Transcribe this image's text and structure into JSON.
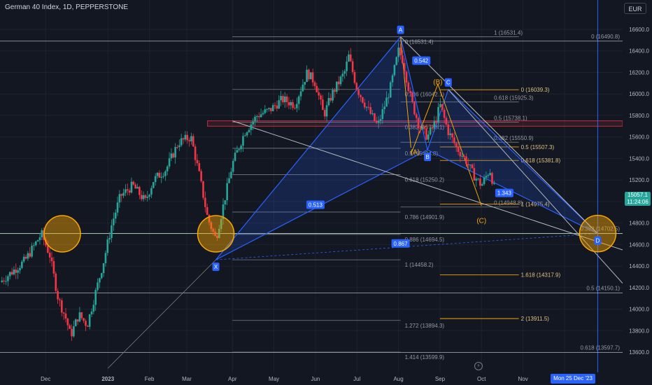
{
  "header": {
    "title": "German 40 Index, 1D, PEPPERSTONE",
    "currency": "EUR"
  },
  "last_price": {
    "value": "15057.1",
    "countdown": "11:24:06"
  },
  "crosshair_date": "Mon 25 Dec '23",
  "colors": {
    "up": "#26a69a",
    "down": "#f23645",
    "pattern": "#2962ff",
    "fib": "#f7a600",
    "grid": "#1e222d",
    "bg": "#131722"
  },
  "chart_data": {
    "type": "candlestick",
    "ylim": [
      13500,
      16700
    ],
    "yticks": [
      13600,
      13800,
      14000,
      14200,
      14400,
      14600,
      14800,
      15000,
      15200,
      15400,
      15600,
      15800,
      16000,
      16200,
      16400,
      16600
    ],
    "ytick_labels": [
      "13600.0",
      "13800.0",
      "14000.0",
      "14200.0",
      "14400.0",
      "14600.0",
      "14800.0",
      "15000.0",
      "15200.0",
      "15400.0",
      "15600.0",
      "15800.0",
      "16000.0",
      "16200.0",
      "16400.0",
      "16600.0"
    ],
    "x_labels": [
      {
        "label": "Dec",
        "t": 0.5
      },
      {
        "label": "2023",
        "t": 2.0
      },
      {
        "label": "Feb",
        "t": 3.0
      },
      {
        "label": "Mar",
        "t": 3.9
      },
      {
        "label": "Apr",
        "t": 5.0
      },
      {
        "label": "May",
        "t": 6.0
      },
      {
        "label": "Jun",
        "t": 7.0
      },
      {
        "label": "Jul",
        "t": 8.0
      },
      {
        "label": "Aug",
        "t": 9.0
      },
      {
        "label": "Sep",
        "t": 10.0
      },
      {
        "label": "Oct",
        "t": 11.0
      },
      {
        "label": "Nov",
        "t": 12.0
      },
      {
        "label": "Dec",
        "t": 13.0
      }
    ],
    "price_path": [
      [
        -0.6,
        14250
      ],
      [
        0.0,
        14450
      ],
      [
        0.4,
        14700
      ],
      [
        0.6,
        14500
      ],
      [
        0.8,
        14100
      ],
      [
        1.0,
        13900
      ],
      [
        1.1,
        13750
      ],
      [
        1.3,
        13950
      ],
      [
        1.5,
        13850
      ],
      [
        1.7,
        14150
      ],
      [
        1.9,
        14450
      ],
      [
        2.1,
        14800
      ],
      [
        2.3,
        15050
      ],
      [
        2.6,
        15150
      ],
      [
        2.9,
        15000
      ],
      [
        3.1,
        15200
      ],
      [
        3.4,
        15300
      ],
      [
        3.7,
        15550
      ],
      [
        4.0,
        15600
      ],
      [
        4.2,
        15250
      ],
      [
        4.4,
        14850
      ],
      [
        4.6,
        14650
      ],
      [
        4.8,
        15000
      ],
      [
        5.0,
        15350
      ],
      [
        5.3,
        15650
      ],
      [
        5.6,
        15800
      ],
      [
        5.9,
        15850
      ],
      [
        6.2,
        15950
      ],
      [
        6.5,
        15900
      ],
      [
        6.8,
        16200
      ],
      [
        7.0,
        16100
      ],
      [
        7.2,
        15800
      ],
      [
        7.4,
        16000
      ],
      [
        7.7,
        16200
      ],
      [
        7.8,
        16350
      ],
      [
        8.0,
        16050
      ],
      [
        8.2,
        15900
      ],
      [
        8.5,
        15700
      ],
      [
        8.8,
        16050
      ],
      [
        9.0,
        16400
      ],
      [
        9.1,
        16320
      ],
      [
        9.3,
        15950
      ],
      [
        9.5,
        15700
      ],
      [
        9.7,
        15600
      ],
      [
        9.9,
        15750
      ],
      [
        10.0,
        15900
      ],
      [
        10.2,
        15650
      ],
      [
        10.4,
        15500
      ],
      [
        10.6,
        15400
      ],
      [
        10.8,
        15250
      ],
      [
        11.0,
        15150
      ],
      [
        11.2,
        15300
      ],
      [
        11.35,
        15050
      ]
    ],
    "pattern_points": [
      {
        "label": "X",
        "t": 4.6,
        "p": 14458
      },
      {
        "label": "A",
        "t": 9.05,
        "p": 16531
      },
      {
        "label": "B",
        "t": 9.7,
        "p": 15480
      },
      {
        "label": "C",
        "t": 10.2,
        "p": 16042
      },
      {
        "label": "D",
        "t": 13.8,
        "p": 14702
      }
    ],
    "pattern_ratios": [
      {
        "label": "0.513",
        "t": 7.0,
        "p": 14970
      },
      {
        "label": "0.542",
        "t": 9.55,
        "p": 16310
      },
      {
        "label": "0.867",
        "t": 9.05,
        "p": 14610
      },
      {
        "label": "1.343",
        "t": 11.55,
        "p": 15080
      }
    ],
    "abc_points": [
      {
        "label": "(A)",
        "t": 9.4,
        "p": 15440
      },
      {
        "label": "(B)",
        "t": 9.95,
        "p": 16090
      },
      {
        "label": "(C)",
        "t": 11.0,
        "p": 14800
      }
    ],
    "fib_levels": [
      {
        "label": "0 (16531.4)",
        "p": 16531.4,
        "t0": 5.0,
        "t1": 9.05
      },
      {
        "label": "0.236 (16042.1)",
        "p": 16042.1,
        "t0": 5.0,
        "t1": 9.05
      },
      {
        "label": "0.382 (15738.1)",
        "p": 15738.1,
        "t0": 5.0,
        "t1": 9.05
      },
      {
        "label": "0.5 (15494.8)",
        "p": 15494.8,
        "t0": 5.0,
        "t1": 9.05
      },
      {
        "label": "0.618 (15250.2)",
        "p": 15250.2,
        "t0": 5.0,
        "t1": 9.05
      },
      {
        "label": "0.786 (14901.9)",
        "p": 14901.9,
        "t0": 5.0,
        "t1": 9.05
      },
      {
        "label": "0.886 (14694.5)",
        "p": 14694.5,
        "t0": 5.0,
        "t1": 9.05
      },
      {
        "label": "1 (14458.2)",
        "p": 14458.2,
        "t0": 5.0,
        "t1": 9.05
      },
      {
        "label": "1.272 (13894.3)",
        "p": 13894.3,
        "t0": 5.0,
        "t1": 9.05
      },
      {
        "label": "1.414 (13599.9)",
        "p": 13599.9,
        "t0": 5.0,
        "t1": 9.05
      }
    ],
    "fib_levels_right": [
      {
        "label": "1 (16531.4)",
        "p": 16531.4
      },
      {
        "label": "0.618 (15925.3)",
        "p": 15925.3
      },
      {
        "label": "0.5 (15738.1)",
        "p": 15738.1
      },
      {
        "label": "0.382 (15550.9)",
        "p": 15550.9
      },
      {
        "label": "0 (14948.8)",
        "p": 14948.8
      }
    ],
    "ext_levels": [
      {
        "label": "0 (16039.3)",
        "p": 16039.3
      },
      {
        "label": "0.5 (15507.3)",
        "p": 15507.3
      },
      {
        "label": "0.618 (15381.8)",
        "p": 15381.8
      },
      {
        "label": "1 (14975.4)",
        "p": 14975.4
      },
      {
        "label": "1.618 (14317.9)",
        "p": 14317.9
      },
      {
        "label": "2 (13911.5)",
        "p": 13911.5
      }
    ],
    "far_levels": [
      {
        "label": "0 (16490.8)",
        "p": 16490.8
      },
      {
        "label": "0.382 (14702.5)",
        "p": 14702.5
      },
      {
        "label": "0.5 (14150.1)",
        "p": 14150.1
      },
      {
        "label": "0.618 (13597.7)",
        "p": 13597.7
      }
    ],
    "red_zone": [
      15700,
      15750
    ],
    "green_line": 14702,
    "circles": [
      {
        "t": 0.9,
        "p": 14700
      },
      {
        "t": 4.6,
        "p": 14700
      },
      {
        "t": 13.8,
        "p": 14702
      }
    ]
  }
}
